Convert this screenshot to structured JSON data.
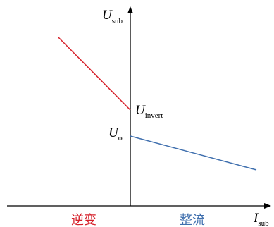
{
  "diagram": {
    "y_axis_label": {
      "main": "U",
      "sub": "sub"
    },
    "x_axis_label": {
      "main": "I",
      "sub": "sub"
    },
    "invert_point_label": {
      "main": "U",
      "sub": "invert"
    },
    "oc_point_label": {
      "main": "U",
      "sub": "oc"
    },
    "region_left_label": "逆变",
    "region_right_label": "整流",
    "colors": {
      "invert_line": "#d6202a",
      "rectify_line": "#3f6fae",
      "region_left_text": "#d6202a",
      "region_right_text": "#3f6fae",
      "axis": "#000000"
    }
  }
}
